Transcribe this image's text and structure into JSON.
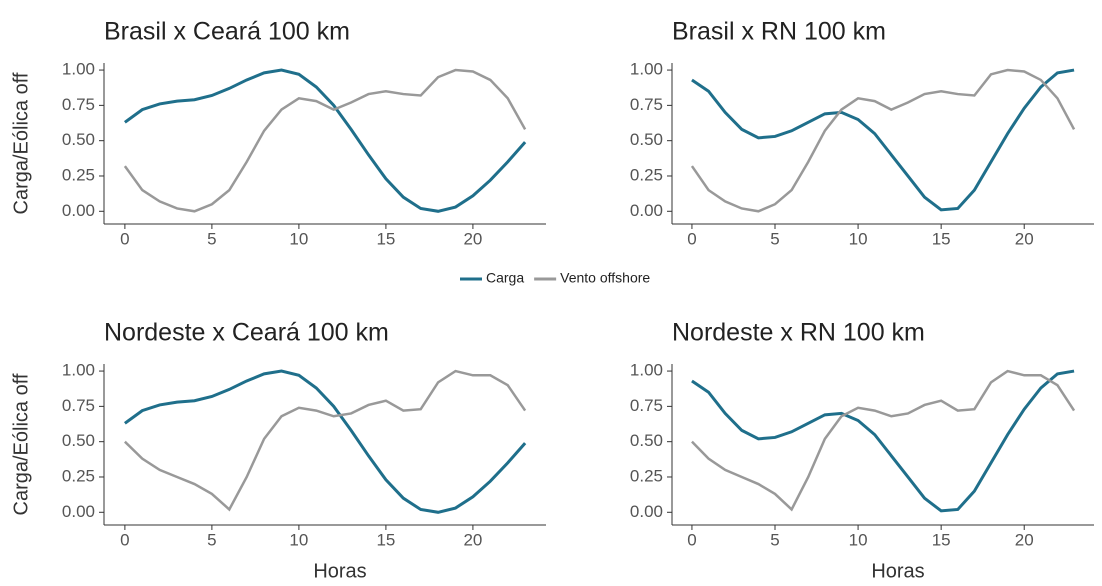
{
  "chart_data": [
    {
      "type": "line",
      "title": "Brasil x Ceará 100 km",
      "ylabel": "Carga/Eólica off",
      "x": [
        0,
        1,
        2,
        3,
        4,
        5,
        6,
        7,
        8,
        9,
        10,
        11,
        12,
        13,
        14,
        15,
        16,
        17,
        18,
        19,
        20,
        21,
        22,
        23
      ],
      "series": [
        {
          "name": "Carga",
          "color": "#1f6f8b",
          "values": [
            0.63,
            0.72,
            0.76,
            0.78,
            0.79,
            0.82,
            0.87,
            0.93,
            0.98,
            1.0,
            0.97,
            0.88,
            0.75,
            0.58,
            0.4,
            0.23,
            0.1,
            0.02,
            0.0,
            0.03,
            0.11,
            0.22,
            0.35,
            0.49
          ]
        },
        {
          "name": "Vento offshore",
          "color": "#999999",
          "values": [
            0.32,
            0.15,
            0.07,
            0.02,
            0.0,
            0.05,
            0.15,
            0.35,
            0.57,
            0.72,
            0.8,
            0.78,
            0.72,
            0.77,
            0.83,
            0.85,
            0.83,
            0.82,
            0.95,
            1.0,
            0.99,
            0.93,
            0.8,
            0.58
          ]
        }
      ],
      "xlim": [
        -1.2,
        24.2
      ],
      "xticks": [
        0,
        5,
        10,
        15,
        20
      ],
      "ylim": [
        -0.09,
        1.05
      ],
      "yticks": [
        {
          "value": 0,
          "label": "0.00"
        },
        {
          "value": 0.25,
          "label": "0.25"
        },
        {
          "value": 0.5,
          "label": "0.50"
        },
        {
          "value": 0.75,
          "label": "0.75"
        },
        {
          "value": 1,
          "label": "1.00"
        }
      ]
    },
    {
      "type": "line",
      "title": "Brasil x RN 100 km",
      "x": [
        0,
        1,
        2,
        3,
        4,
        5,
        6,
        7,
        8,
        9,
        10,
        11,
        12,
        13,
        14,
        15,
        16,
        17,
        18,
        19,
        20,
        21,
        22,
        23
      ],
      "series": [
        {
          "name": "Carga",
          "color": "#1f6f8b",
          "values": [
            0.93,
            0.85,
            0.7,
            0.58,
            0.52,
            0.53,
            0.57,
            0.63,
            0.69,
            0.7,
            0.65,
            0.55,
            0.4,
            0.25,
            0.1,
            0.01,
            0.02,
            0.15,
            0.35,
            0.55,
            0.73,
            0.88,
            0.98,
            1.0
          ]
        },
        {
          "name": "Vento offshore",
          "color": "#999999",
          "values": [
            0.32,
            0.15,
            0.07,
            0.02,
            0.0,
            0.05,
            0.15,
            0.35,
            0.57,
            0.72,
            0.8,
            0.78,
            0.72,
            0.77,
            0.83,
            0.85,
            0.83,
            0.82,
            0.97,
            1.0,
            0.99,
            0.93,
            0.8,
            0.58
          ]
        }
      ],
      "xlim": [
        -1.2,
        24.2
      ],
      "xticks": [
        0,
        5,
        10,
        15,
        20
      ],
      "ylim": [
        -0.09,
        1.05
      ],
      "yticks": [
        {
          "value": 0,
          "label": "0.00"
        },
        {
          "value": 0.25,
          "label": "0.25"
        },
        {
          "value": 0.5,
          "label": "0.50"
        },
        {
          "value": 0.75,
          "label": "0.75"
        },
        {
          "value": 1,
          "label": "1.00"
        }
      ]
    },
    {
      "type": "line",
      "title": "Nordeste x Ceará 100 km",
      "ylabel": "Carga/Eólica off",
      "xlabel": "Horas",
      "x": [
        0,
        1,
        2,
        3,
        4,
        5,
        6,
        7,
        8,
        9,
        10,
        11,
        12,
        13,
        14,
        15,
        16,
        17,
        18,
        19,
        20,
        21,
        22,
        23
      ],
      "series": [
        {
          "name": "Carga",
          "color": "#1f6f8b",
          "values": [
            0.63,
            0.72,
            0.76,
            0.78,
            0.79,
            0.82,
            0.87,
            0.93,
            0.98,
            1.0,
            0.97,
            0.88,
            0.75,
            0.58,
            0.4,
            0.23,
            0.1,
            0.02,
            0.0,
            0.03,
            0.11,
            0.22,
            0.35,
            0.49
          ]
        },
        {
          "name": "Vento offshore",
          "color": "#999999",
          "values": [
            0.5,
            0.38,
            0.3,
            0.25,
            0.2,
            0.13,
            0.02,
            0.25,
            0.52,
            0.68,
            0.74,
            0.72,
            0.68,
            0.7,
            0.76,
            0.79,
            0.72,
            0.73,
            0.92,
            1.0,
            0.97,
            0.97,
            0.9,
            0.72
          ]
        }
      ],
      "xlim": [
        -1.2,
        24.2
      ],
      "xticks": [
        0,
        5,
        10,
        15,
        20
      ],
      "ylim": [
        -0.09,
        1.05
      ],
      "yticks": [
        {
          "value": 0,
          "label": "0.00"
        },
        {
          "value": 0.25,
          "label": "0.25"
        },
        {
          "value": 0.5,
          "label": "0.50"
        },
        {
          "value": 0.75,
          "label": "0.75"
        },
        {
          "value": 1,
          "label": "1.00"
        }
      ]
    },
    {
      "type": "line",
      "title": "Nordeste x RN 100 km",
      "xlabel": "Horas",
      "x": [
        0,
        1,
        2,
        3,
        4,
        5,
        6,
        7,
        8,
        9,
        10,
        11,
        12,
        13,
        14,
        15,
        16,
        17,
        18,
        19,
        20,
        21,
        22,
        23
      ],
      "series": [
        {
          "name": "Carga",
          "color": "#1f6f8b",
          "values": [
            0.93,
            0.85,
            0.7,
            0.58,
            0.52,
            0.53,
            0.57,
            0.63,
            0.69,
            0.7,
            0.65,
            0.55,
            0.4,
            0.25,
            0.1,
            0.01,
            0.02,
            0.15,
            0.35,
            0.55,
            0.73,
            0.88,
            0.98,
            1.0
          ]
        },
        {
          "name": "Vento offshore",
          "color": "#999999",
          "values": [
            0.5,
            0.38,
            0.3,
            0.25,
            0.2,
            0.13,
            0.02,
            0.25,
            0.52,
            0.68,
            0.74,
            0.72,
            0.68,
            0.7,
            0.76,
            0.79,
            0.72,
            0.73,
            0.92,
            1.0,
            0.97,
            0.97,
            0.9,
            0.72
          ]
        }
      ],
      "xlim": [
        -1.2,
        24.2
      ],
      "xticks": [
        0,
        5,
        10,
        15,
        20
      ],
      "ylim": [
        -0.09,
        1.05
      ],
      "yticks": [
        {
          "value": 0,
          "label": "0.00"
        },
        {
          "value": 0.25,
          "label": "0.25"
        },
        {
          "value": 0.5,
          "label": "0.50"
        },
        {
          "value": 0.75,
          "label": "0.75"
        },
        {
          "value": 1,
          "label": "1.00"
        }
      ]
    }
  ]
}
